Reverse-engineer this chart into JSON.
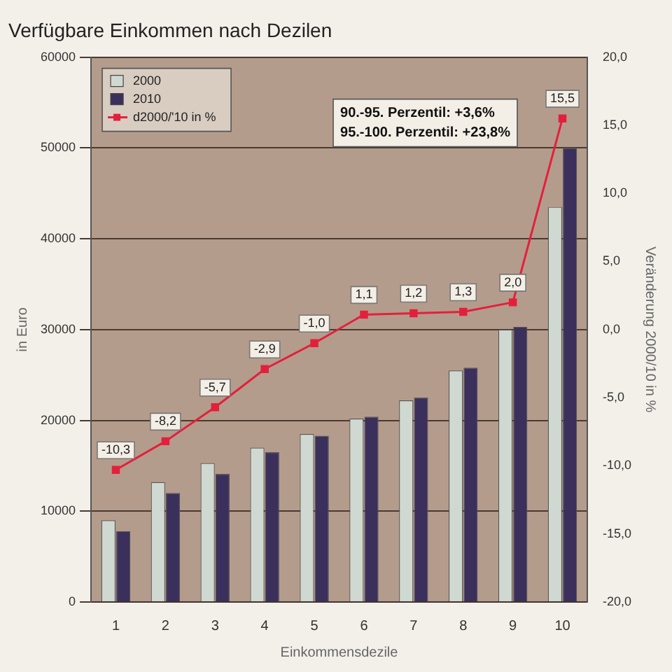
{
  "chart_data": {
    "type": "bar",
    "title": "Verfügbare Einkommen nach Dezilen",
    "xlabel": "Einkommensdezile",
    "ylabel": "in Euro",
    "y2label": "Veränderung 2000/10 in %",
    "categories": [
      "1",
      "2",
      "3",
      "4",
      "5",
      "6",
      "7",
      "8",
      "9",
      "10"
    ],
    "series": [
      {
        "name": "2000",
        "color": "#cfd9d2",
        "values": [
          9000,
          13200,
          15300,
          17000,
          18500,
          20200,
          22200,
          25500,
          30000,
          43500
        ]
      },
      {
        "name": "2010",
        "color": "#3b2f5c",
        "values": [
          7800,
          12000,
          14100,
          16500,
          18300,
          20400,
          22500,
          25800,
          30300,
          50000
        ]
      },
      {
        "name": "d2000/'10 in %",
        "type": "line",
        "axis": "y2",
        "color": "#e3203c",
        "marker": "square",
        "values": [
          -10.3,
          -8.2,
          -5.7,
          -2.9,
          -1.0,
          1.1,
          1.2,
          1.3,
          2.0,
          15.5
        ],
        "value_labels": [
          "-10,3",
          "-8,2",
          "-5,7",
          "-2,9",
          "-1,0",
          "1,1",
          "1,2",
          "1,3",
          "2,0",
          "15,5"
        ]
      }
    ],
    "ylim": [
      0,
      60000
    ],
    "yticks": [
      0,
      10000,
      20000,
      30000,
      40000,
      50000,
      60000
    ],
    "y2lim": [
      -20,
      20
    ],
    "y2ticks": [
      {
        "value": -20,
        "label": "-20,0"
      },
      {
        "value": -15,
        "label": "-15,0"
      },
      {
        "value": -10,
        "label": "-10,0"
      },
      {
        "value": -5,
        "label": "-5,0"
      },
      {
        "value": 0,
        "label": "0,0"
      },
      {
        "value": 5,
        "label": "5,0"
      },
      {
        "value": 10,
        "label": "10,0"
      },
      {
        "value": 15,
        "label": "15,0"
      },
      {
        "value": 20,
        "label": "20,0"
      }
    ],
    "grid": "y",
    "legend": "top left",
    "annotations": [
      "90.-95. Perzentil: +3,6%",
      "95.-100. Perzentil: +23,8%"
    ]
  }
}
